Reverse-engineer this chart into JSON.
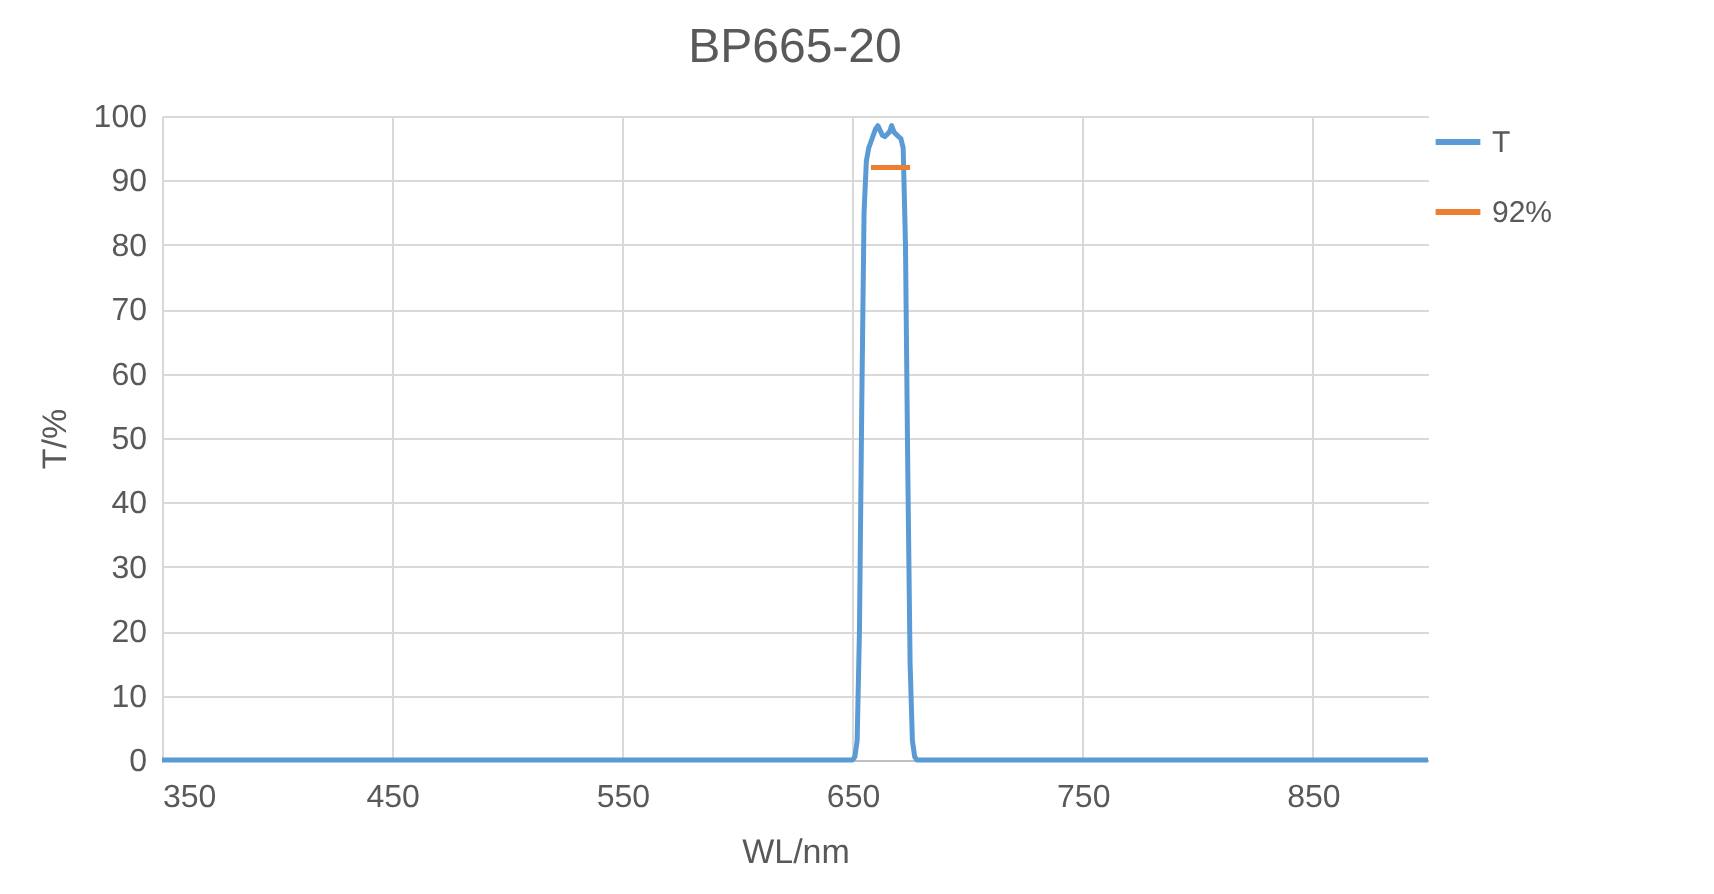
{
  "chart_data": {
    "type": "line",
    "title": "BP665-20",
    "xlabel": "WL/nm",
    "ylabel": "T/%",
    "xlim": [
      350,
      900
    ],
    "xticks": [
      350,
      450,
      550,
      650,
      750,
      850
    ],
    "ylim": [
      0,
      100
    ],
    "yticks": [
      0,
      10,
      20,
      30,
      40,
      50,
      60,
      70,
      80,
      90,
      100
    ],
    "grid": true,
    "legend": "right",
    "line_style": "solid",
    "marker": "none",
    "series": [
      {
        "name": "T",
        "color": "#5b9bd5",
        "x": [
          350,
          650,
          651,
          652,
          653,
          654,
          655,
          656,
          657,
          658,
          660,
          661,
          663,
          664,
          666,
          667,
          668,
          670,
          671,
          672,
          673,
          674,
          675,
          676,
          677,
          678,
          900
        ],
        "values": [
          0,
          0,
          0.5,
          3,
          20,
          55,
          85,
          93,
          95,
          96,
          98,
          98.5,
          97,
          96.8,
          97.5,
          98.5,
          97.5,
          96.8,
          96.5,
          95,
          80,
          45,
          15,
          3,
          0.5,
          0,
          0
        ]
      },
      {
        "name": "92%",
        "color": "#ed7d31",
        "x": [
          658,
          675
        ],
        "values": [
          92,
          92
        ]
      }
    ]
  }
}
